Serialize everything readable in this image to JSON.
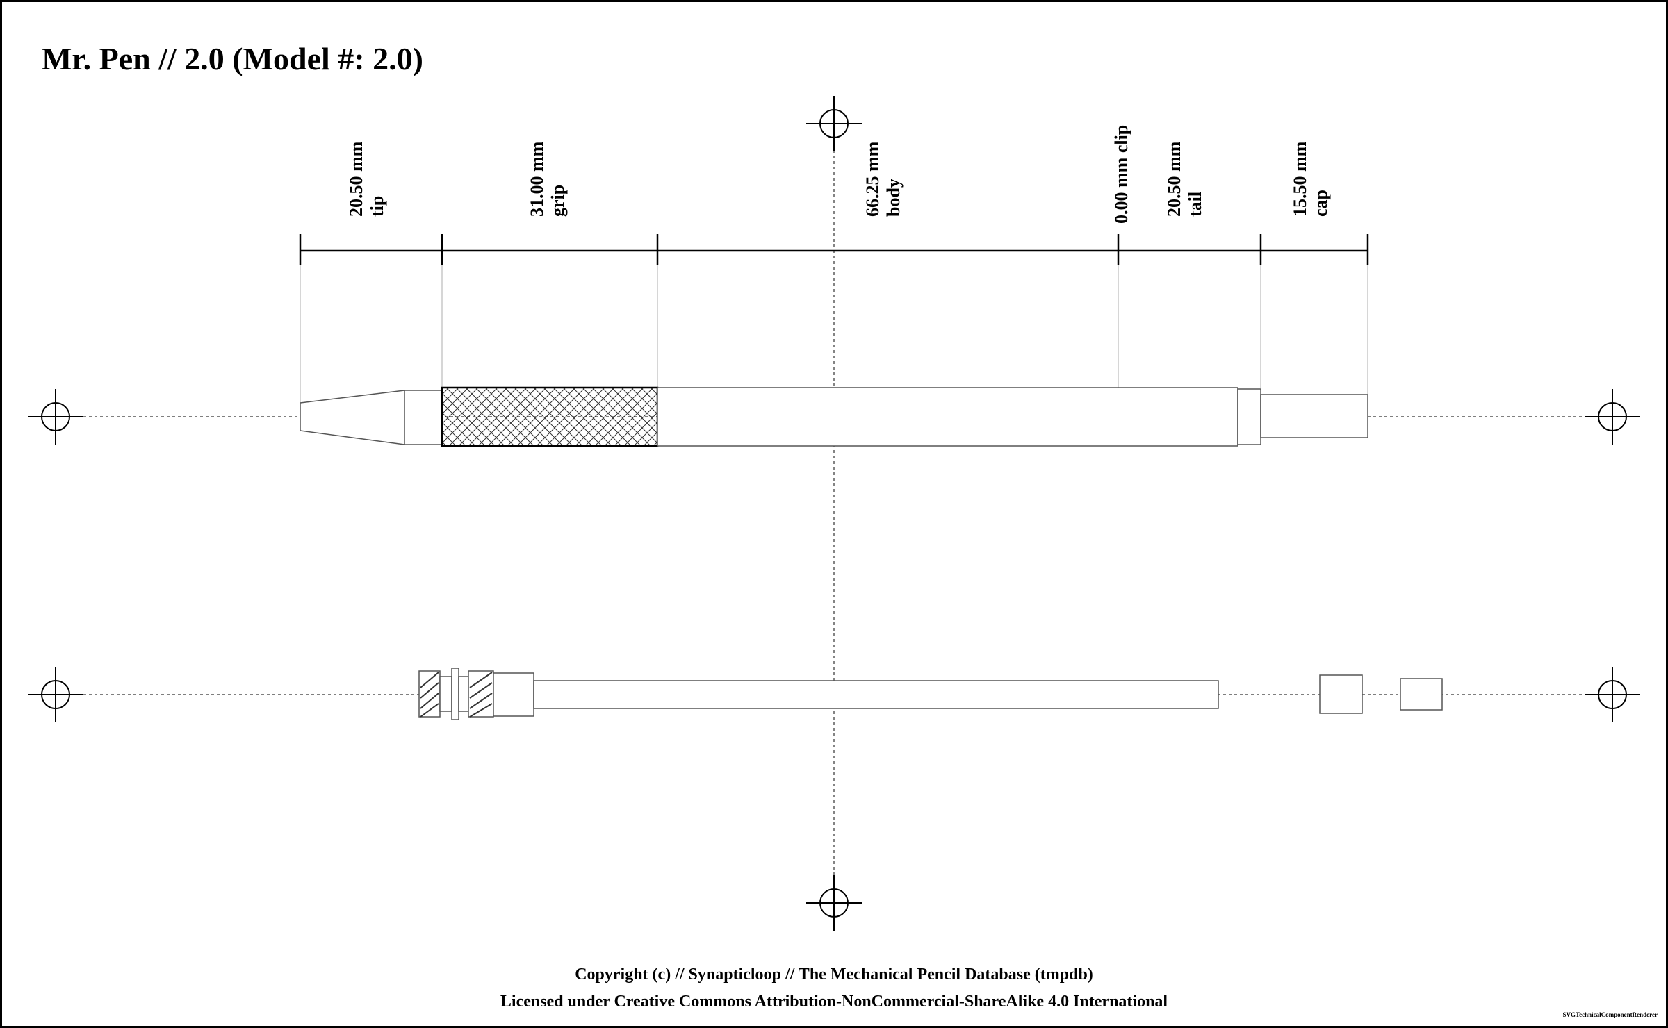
{
  "title": "Mr. Pen // 2.0 (Model #: 2.0)",
  "dimensions": [
    {
      "value": "20.50 mm",
      "part": "tip"
    },
    {
      "value": "31.00 mm",
      "part": "grip"
    },
    {
      "value": "66.25 mm",
      "part": "body"
    },
    {
      "value": "0.00 mm clip",
      "part": ""
    },
    {
      "value": "20.50 mm",
      "part": "tail"
    },
    {
      "value": "15.50 mm",
      "part": "cap"
    }
  ],
  "footer": {
    "copyright": "Copyright (c) // Synapticloop // The Mechanical Pencil Database (tmpdb)",
    "license": "Licensed under Creative Commons Attribution-NonCommercial-ShareAlike 4.0 International"
  },
  "credit": "SVGTechnicalComponentRenderer",
  "colors": {
    "outline": "#555555",
    "dimension_line": "#000000",
    "extension_line": "#c8c8c8",
    "background": "#ffffff"
  }
}
